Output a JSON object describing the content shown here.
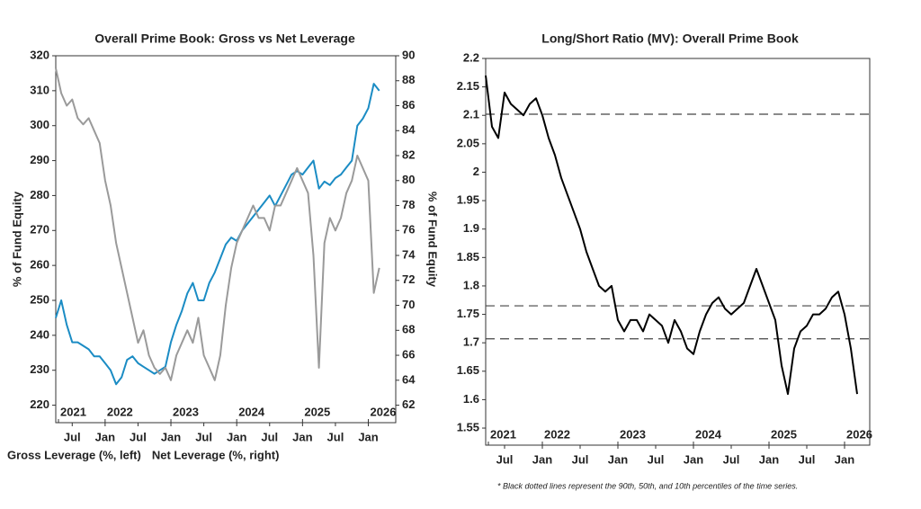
{
  "chart_data": [
    {
      "type": "line",
      "title": "Overall Prime Book: Gross vs Net Leverage",
      "ylabel": "% of Fund Equity",
      "y2label": "% of Fund Equity",
      "x": [
        "2021-04",
        "2021-05",
        "2021-06",
        "2021-07",
        "2021-08",
        "2021-09",
        "2021-10",
        "2021-11",
        "2021-12",
        "2022-01",
        "2022-02",
        "2022-03",
        "2022-04",
        "2022-05",
        "2022-06",
        "2022-07",
        "2022-08",
        "2022-09",
        "2022-10",
        "2022-11",
        "2022-12",
        "2023-01",
        "2023-02",
        "2023-03",
        "2023-04",
        "2023-05",
        "2023-06",
        "2023-07",
        "2023-08",
        "2023-09",
        "2023-10",
        "2023-11",
        "2023-12",
        "2024-01",
        "2024-02",
        "2024-03",
        "2024-04",
        "2024-05",
        "2024-06",
        "2024-07",
        "2024-08",
        "2024-09",
        "2024-10",
        "2024-11",
        "2024-12",
        "2025-01",
        "2025-02",
        "2025-03",
        "2025-04",
        "2025-05",
        "2025-06",
        "2025-07",
        "2025-08",
        "2025-09",
        "2025-10",
        "2025-11",
        "2025-12",
        "2026-01",
        "2026-02",
        "2026-03"
      ],
      "xlim": [
        "2021-04",
        "2026-06"
      ],
      "xticks": [
        {
          "value": "2021-07",
          "label": "Jul"
        },
        {
          "value": "2022-01",
          "label": "Jan"
        },
        {
          "value": "2022-07",
          "label": "Jul"
        },
        {
          "value": "2023-01",
          "label": "Jan"
        },
        {
          "value": "2023-07",
          "label": "Jul"
        },
        {
          "value": "2024-01",
          "label": "Jan"
        },
        {
          "value": "2024-07",
          "label": "Jul"
        },
        {
          "value": "2025-01",
          "label": "Jan"
        },
        {
          "value": "2025-07",
          "label": "Jul"
        },
        {
          "value": "2026-01",
          "label": "Jan"
        }
      ],
      "year_ticks": [
        {
          "value": "2021-01",
          "label": "2021"
        },
        {
          "value": "2022-01",
          "label": "2022"
        },
        {
          "value": "2023-01",
          "label": "2023"
        },
        {
          "value": "2024-01",
          "label": "2024"
        },
        {
          "value": "2025-01",
          "label": "2025"
        },
        {
          "value": "2026-01",
          "label": "2026"
        }
      ],
      "ylim": [
        215,
        320
      ],
      "yticks": [
        220,
        230,
        240,
        250,
        260,
        270,
        280,
        290,
        300,
        310,
        320
      ],
      "y2lim": [
        60.6,
        90
      ],
      "y2ticks": [
        62,
        64,
        66,
        68,
        70,
        72,
        74,
        76,
        78,
        80,
        82,
        84,
        86,
        88,
        90
      ],
      "series": [
        {
          "name": "Gross Leverage (%, left)",
          "color": "#1b8cc4",
          "axis": "y",
          "values": [
            245,
            250,
            243,
            238,
            238,
            237,
            236,
            234,
            234,
            232,
            230,
            226,
            228,
            233,
            234,
            232,
            231,
            230,
            229,
            230,
            231,
            238,
            243,
            247,
            252,
            255,
            250,
            250,
            255,
            258,
            262,
            266,
            268,
            267,
            270,
            272,
            274,
            276,
            278,
            280,
            277,
            280,
            283,
            286,
            287,
            286,
            288,
            290,
            282,
            284,
            283,
            285,
            286,
            288,
            290,
            300,
            302,
            305,
            312,
            310
          ]
        },
        {
          "name": "Net Leverage (%, right)",
          "color": "#9a9a9a",
          "axis": "y2",
          "values": [
            89,
            87,
            86,
            86.5,
            85,
            84.5,
            85,
            84,
            83,
            80,
            78,
            75,
            73,
            71,
            69,
            67,
            68,
            66,
            65,
            64.5,
            65,
            64,
            66,
            67,
            68,
            67,
            69,
            66,
            65,
            64,
            66,
            70,
            73,
            75,
            76,
            77,
            78,
            77,
            77,
            76,
            78,
            78,
            79,
            80,
            81,
            80,
            79,
            74,
            65,
            75,
            77,
            76,
            77,
            79,
            80,
            82,
            81,
            80,
            71,
            73
          ]
        }
      ]
    },
    {
      "type": "line",
      "title": "Long/Short Ratio (MV): Overall Prime Book",
      "x": [
        "2021-04",
        "2021-05",
        "2021-06",
        "2021-07",
        "2021-08",
        "2021-09",
        "2021-10",
        "2021-11",
        "2021-12",
        "2022-01",
        "2022-02",
        "2022-03",
        "2022-04",
        "2022-05",
        "2022-06",
        "2022-07",
        "2022-08",
        "2022-09",
        "2022-10",
        "2022-11",
        "2022-12",
        "2023-01",
        "2023-02",
        "2023-03",
        "2023-04",
        "2023-05",
        "2023-06",
        "2023-07",
        "2023-08",
        "2023-09",
        "2023-10",
        "2023-11",
        "2023-12",
        "2024-01",
        "2024-02",
        "2024-03",
        "2024-04",
        "2024-05",
        "2024-06",
        "2024-07",
        "2024-08",
        "2024-09",
        "2024-10",
        "2024-11",
        "2024-12",
        "2025-01",
        "2025-02",
        "2025-03",
        "2025-04",
        "2025-05",
        "2025-06",
        "2025-07",
        "2025-08",
        "2025-09",
        "2025-10",
        "2025-11",
        "2025-12",
        "2026-01",
        "2026-02",
        "2026-03"
      ],
      "xlim": [
        "2021-04",
        "2026-05"
      ],
      "xticks": [
        {
          "value": "2021-07",
          "label": "Jul"
        },
        {
          "value": "2022-01",
          "label": "Jan"
        },
        {
          "value": "2022-07",
          "label": "Jul"
        },
        {
          "value": "2023-01",
          "label": "Jan"
        },
        {
          "value": "2023-07",
          "label": "Jul"
        },
        {
          "value": "2024-01",
          "label": "Jan"
        },
        {
          "value": "2024-07",
          "label": "Jul"
        },
        {
          "value": "2025-01",
          "label": "Jan"
        },
        {
          "value": "2025-07",
          "label": "Jul"
        },
        {
          "value": "2026-01",
          "label": "Jan"
        }
      ],
      "year_ticks": [
        {
          "value": "2021-01",
          "label": "2021"
        },
        {
          "value": "2022-01",
          "label": "2022"
        },
        {
          "value": "2023-01",
          "label": "2023"
        },
        {
          "value": "2024-01",
          "label": "2024"
        },
        {
          "value": "2025-01",
          "label": "2025"
        },
        {
          "value": "2026-01",
          "label": "2026"
        }
      ],
      "ylim": [
        1.52,
        2.2
      ],
      "yticks": [
        1.55,
        1.6,
        1.65,
        1.7,
        1.75,
        1.8,
        1.85,
        1.9,
        1.95,
        2,
        2.05,
        2.1,
        2.15,
        2.2
      ],
      "reference_lines": [
        2.102,
        1.765,
        1.707
      ],
      "note": "* Black dotted lines represent the 90th, 50th, and 10th percentiles of the time series.",
      "series": [
        {
          "name": "Long/Short Ratio",
          "color": "#000000",
          "axis": "y",
          "values": [
            2.17,
            2.08,
            2.06,
            2.14,
            2.12,
            2.11,
            2.1,
            2.12,
            2.13,
            2.1,
            2.06,
            2.03,
            1.99,
            1.96,
            1.93,
            1.9,
            1.86,
            1.83,
            1.8,
            1.79,
            1.8,
            1.74,
            1.72,
            1.74,
            1.74,
            1.72,
            1.75,
            1.74,
            1.73,
            1.7,
            1.74,
            1.72,
            1.69,
            1.68,
            1.72,
            1.75,
            1.77,
            1.78,
            1.76,
            1.75,
            1.76,
            1.77,
            1.8,
            1.83,
            1.8,
            1.77,
            1.74,
            1.66,
            1.61,
            1.69,
            1.72,
            1.73,
            1.75,
            1.75,
            1.76,
            1.78,
            1.79,
            1.75,
            1.69,
            1.61
          ]
        }
      ]
    }
  ]
}
